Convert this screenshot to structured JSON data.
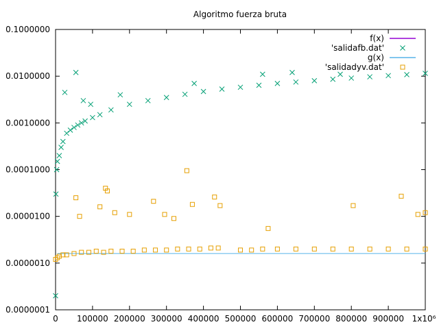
{
  "chart_data": {
    "type": "scatter",
    "title": "Algoritmo fuerza bruta",
    "xlabel": "",
    "ylabel": "",
    "xlim": [
      0,
      1000000
    ],
    "ylim": [
      1e-07,
      0.1
    ],
    "yscale": "log",
    "grid": false,
    "legend_placement": "top-right",
    "x_ticks": [
      {
        "value": 0,
        "label": "0"
      },
      {
        "value": 100000,
        "label": "100000"
      },
      {
        "value": 200000,
        "label": "200000"
      },
      {
        "value": 300000,
        "label": "300000"
      },
      {
        "value": 400000,
        "label": "400000"
      },
      {
        "value": 500000,
        "label": "500000"
      },
      {
        "value": 600000,
        "label": "600000"
      },
      {
        "value": 700000,
        "label": "700000"
      },
      {
        "value": 800000,
        "label": "800000"
      },
      {
        "value": 900000,
        "label": "900000"
      },
      {
        "value": 1000000,
        "label": "1x10⁶"
      }
    ],
    "y_ticks": [
      {
        "value": 1e-07,
        "label": "0.0000001"
      },
      {
        "value": 1e-06,
        "label": "0.0000010"
      },
      {
        "value": 1e-05,
        "label": "0.0000100"
      },
      {
        "value": 0.0001,
        "label": "0.0001000"
      },
      {
        "value": 0.001,
        "label": "0.0010000"
      },
      {
        "value": 0.01,
        "label": "0.0100000"
      },
      {
        "value": 0.1,
        "label": "0.1000000"
      }
    ],
    "series": [
      {
        "name": "f(x)",
        "kind": "line",
        "color": "#9400d3",
        "x": [],
        "y": []
      },
      {
        "name": "'salidafb.dat'",
        "kind": "scatter",
        "marker": "x",
        "color": "#009e73",
        "x": [
          0,
          1000,
          3000,
          5000,
          10000,
          15000,
          20000,
          30000,
          40000,
          50000,
          60000,
          70000,
          80000,
          100000,
          120000,
          150000,
          200000,
          250000,
          300000,
          350000,
          400000,
          450000,
          500000,
          550000,
          600000,
          650000,
          700000,
          750000,
          800000,
          850000,
          900000,
          950000,
          1000000,
          25000,
          55000,
          75000,
          95000,
          175000,
          375000,
          560000,
          640000,
          770000
        ],
        "y": [
          2e-07,
          3e-05,
          0.0001,
          0.00015,
          0.0002,
          0.0003,
          0.0004,
          0.0006,
          0.0007,
          0.0008,
          0.0009,
          0.001,
          0.0011,
          0.0013,
          0.0015,
          0.0019,
          0.0025,
          0.003,
          0.0035,
          0.0041,
          0.0047,
          0.0053,
          0.0058,
          0.0064,
          0.007,
          0.0075,
          0.008,
          0.0086,
          0.0091,
          0.0097,
          0.0103,
          0.0108,
          0.0115,
          0.0045,
          0.012,
          0.003,
          0.0025,
          0.004,
          0.007,
          0.011,
          0.012,
          0.011
        ]
      },
      {
        "name": "g(x)",
        "kind": "line",
        "color": "#56b4e9",
        "x": [
          5000,
          1000000
        ],
        "y": [
          1.6e-06,
          1.6e-06
        ]
      },
      {
        "name": "'salidadyv.dat'",
        "kind": "scatter",
        "marker": "square",
        "color": "#e69f00",
        "x": [
          0,
          5000,
          10000,
          20000,
          30000,
          50000,
          70000,
          90000,
          110000,
          130000,
          150000,
          180000,
          210000,
          240000,
          270000,
          300000,
          330000,
          360000,
          390000,
          420000,
          440000,
          500000,
          530000,
          560000,
          600000,
          650000,
          700000,
          750000,
          800000,
          850000,
          900000,
          950000,
          1000000,
          55000,
          65000,
          120000,
          135000,
          140000,
          160000,
          200000,
          265000,
          295000,
          320000,
          355000,
          370000,
          430000,
          445000,
          575000,
          805000,
          935000,
          980000,
          1000000
        ],
        "y": [
          1.2e-06,
          1.3e-06,
          1.4e-06,
          1.5e-06,
          1.5e-06,
          1.6e-06,
          1.7e-06,
          1.7e-06,
          1.8e-06,
          1.7e-06,
          1.8e-06,
          1.8e-06,
          1.8e-06,
          1.9e-06,
          1.9e-06,
          1.9e-06,
          2e-06,
          2e-06,
          2e-06,
          2.1e-06,
          2.1e-06,
          1.9e-06,
          1.9e-06,
          2e-06,
          2e-06,
          2e-06,
          2e-06,
          2e-06,
          2e-06,
          2e-06,
          2e-06,
          2e-06,
          2e-06,
          2.5e-05,
          1e-05,
          1.6e-05,
          4e-05,
          3.5e-05,
          1.2e-05,
          1.1e-05,
          2.1e-05,
          1.1e-05,
          9e-06,
          9.5e-05,
          1.8e-05,
          2.6e-05,
          1.7e-05,
          5.5e-06,
          1.7e-05,
          2.7e-05,
          1.1e-05,
          1.2e-05
        ]
      }
    ]
  }
}
